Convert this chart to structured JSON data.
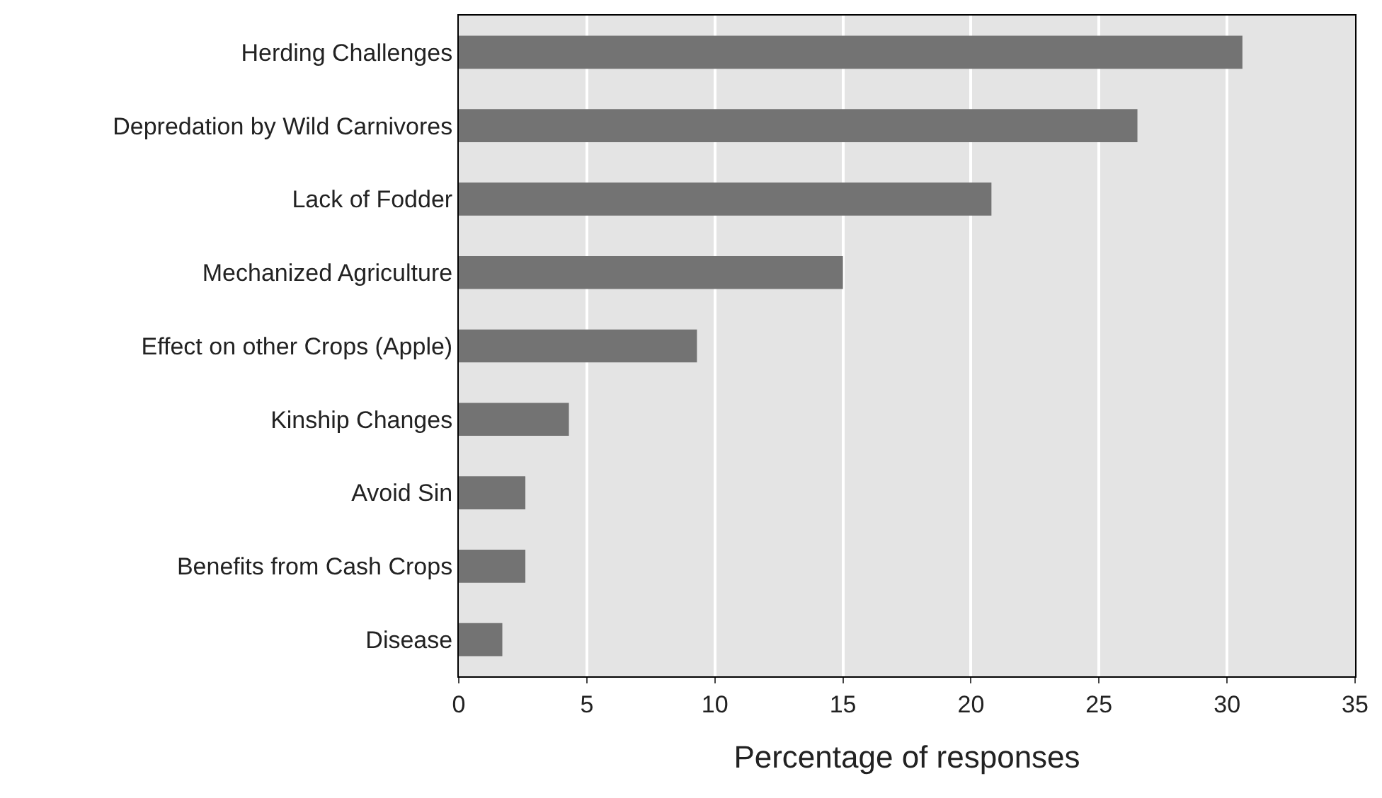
{
  "chart_data": {
    "type": "bar",
    "orientation": "horizontal",
    "xlabel": "Percentage of responses",
    "categories": [
      "Herding Challenges",
      "Depredation by Wild Carnivores",
      "Lack of Fodder",
      "Mechanized Agriculture",
      "Effect on other Crops (Apple)",
      "Kinship Changes",
      "Avoid Sin",
      "Benefits from Cash Crops",
      "Disease"
    ],
    "values": [
      30.6,
      26.5,
      20.8,
      15.0,
      9.3,
      4.3,
      2.6,
      2.6,
      1.7
    ],
    "color": "#737373",
    "xlim": [
      0,
      35
    ],
    "xticks": [
      0,
      5,
      10,
      15,
      20,
      25,
      30,
      35
    ],
    "grid": "x",
    "legend": false
  }
}
